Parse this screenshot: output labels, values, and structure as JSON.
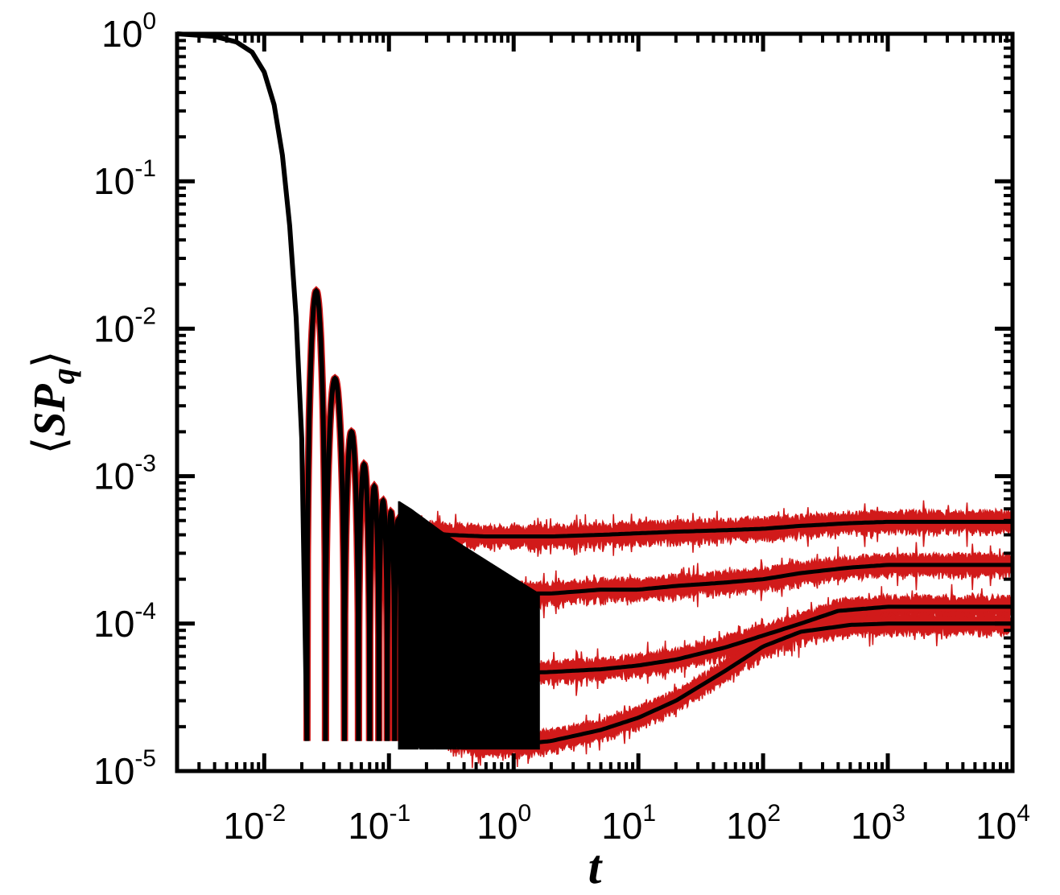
{
  "chart_data": {
    "type": "line",
    "title": "",
    "xlabel": "t",
    "ylabel": {
      "base": "SP",
      "subscript": "q",
      "left_bracket": "⟨",
      "right_bracket": "⟩"
    },
    "x_scale": "log",
    "y_scale": "log",
    "xlim": [
      0.002,
      10000
    ],
    "ylim": [
      1e-05,
      1
    ],
    "grid": false,
    "legend": "none",
    "x_ticks": [
      {
        "value": 0.01,
        "base": "10",
        "exp": "-2"
      },
      {
        "value": 0.1,
        "base": "10",
        "exp": "-1"
      },
      {
        "value": 1,
        "base": "10",
        "exp": "0"
      },
      {
        "value": 10,
        "base": "10",
        "exp": "1"
      },
      {
        "value": 100,
        "base": "10",
        "exp": "2"
      },
      {
        "value": 1000,
        "base": "10",
        "exp": "3"
      },
      {
        "value": 10000,
        "base": "10",
        "exp": "4"
      }
    ],
    "y_ticks": [
      {
        "value": 1,
        "base": "10",
        "exp": "0"
      },
      {
        "value": 0.1,
        "base": "10",
        "exp": "-1"
      },
      {
        "value": 0.01,
        "base": "10",
        "exp": "-2"
      },
      {
        "value": 0.001,
        "base": "10",
        "exp": "-3"
      },
      {
        "value": 0.0001,
        "base": "10",
        "exp": "-4"
      },
      {
        "value": 1e-05,
        "base": "10",
        "exp": "-5"
      }
    ],
    "colors": {
      "simulation": "#d11a1a",
      "theory": "#000000"
    },
    "early_decay": {
      "x": [
        0.002,
        0.004,
        0.006,
        0.008,
        0.01,
        0.012,
        0.014,
        0.016,
        0.018,
        0.02,
        0.022
      ],
      "y": [
        1.0,
        0.96,
        0.88,
        0.75,
        0.55,
        0.33,
        0.15,
        0.05,
        0.012,
        0.0018,
        1.6e-05
      ]
    },
    "oscillation_peaks": [
      {
        "x": 0.025,
        "y": 0.018
      },
      {
        "x": 0.038,
        "y": 0.0046
      },
      {
        "x": 0.05,
        "y": 0.002
      },
      {
        "x": 0.063,
        "y": 0.0012
      },
      {
        "x": 0.077,
        "y": 0.00085
      },
      {
        "x": 0.09,
        "y": 0.00068
      },
      {
        "x": 0.104,
        "y": 0.00057
      },
      {
        "x": 0.118,
        "y": 0.0005
      },
      {
        "x": 0.132,
        "y": 0.00046
      },
      {
        "x": 0.147,
        "y": 0.00043
      }
    ],
    "oscillation_zeros": [
      0.022,
      0.031,
      0.044,
      0.057,
      0.07,
      0.083,
      0.097,
      0.111,
      0.125,
      0.14,
      0.155
    ],
    "series": [
      {
        "x": [
          0.15,
          0.3,
          0.6,
          1,
          2,
          5,
          10,
          20,
          50,
          100,
          200,
          500,
          1000,
          5000,
          10000
        ],
        "y": [
          0.00043,
          0.0004,
          0.00039,
          0.00039,
          0.00039,
          0.0004,
          0.00041,
          0.00042,
          0.00043,
          0.00044,
          0.00046,
          0.00048,
          0.00049,
          0.00049,
          0.00049
        ]
      },
      {
        "x": [
          0.15,
          0.3,
          0.6,
          1,
          2,
          5,
          10,
          20,
          50,
          100,
          200,
          500,
          1000,
          5000,
          10000
        ],
        "y": [
          0.00017,
          0.00016,
          0.00016,
          0.00016,
          0.00016,
          0.00017,
          0.00017,
          0.00018,
          0.00019,
          0.0002,
          0.00022,
          0.00024,
          0.00025,
          0.00025,
          0.00025
        ]
      },
      {
        "x": [
          0.3,
          0.6,
          1,
          2,
          5,
          10,
          20,
          50,
          100,
          200,
          400,
          1000,
          5000,
          10000
        ],
        "y": [
          4.7e-05,
          4.6e-05,
          4.6e-05,
          4.7e-05,
          4.9e-05,
          5.2e-05,
          5.7e-05,
          6.9e-05,
          8.3e-05,
          0.0001,
          0.000122,
          0.00013,
          0.00013,
          0.00013
        ]
      },
      {
        "x": [
          0.3,
          0.6,
          1,
          2,
          5,
          10,
          20,
          50,
          100,
          200,
          500,
          1000,
          5000,
          10000
        ],
        "y": [
          1.6e-05,
          1.5e-05,
          1.5e-05,
          1.6e-05,
          1.9e-05,
          2.3e-05,
          3e-05,
          4.8e-05,
          7e-05,
          8.8e-05,
          9.8e-05,
          0.0001,
          0.0001,
          0.0001
        ]
      }
    ]
  }
}
